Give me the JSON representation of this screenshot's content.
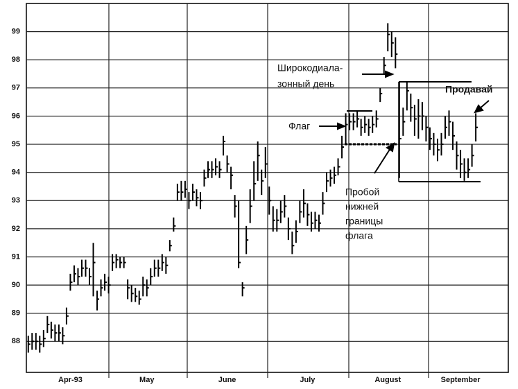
{
  "chart_data": {
    "type": "ohlc",
    "annotations": [
      "Широкодиала-",
      "зонный день",
      "Флаг",
      "Продавай",
      "Пробой",
      "нижней",
      "границы",
      "флага"
    ],
    "ylim": [
      86.9,
      100
    ],
    "yticks": [
      88,
      89,
      90,
      91,
      92,
      93,
      94,
      95,
      96,
      97,
      98,
      99
    ],
    "grid": true,
    "color": "#000000",
    "categories": [
      null,
      null,
      null,
      null,
      null,
      null,
      null,
      null,
      null,
      null,
      null,
      "Apr-93",
      null,
      null,
      null,
      null,
      null,
      null,
      null,
      null,
      null,
      null,
      null,
      null,
      null,
      null,
      null,
      null,
      null,
      null,
      null,
      "May",
      null,
      null,
      null,
      null,
      null,
      null,
      null,
      null,
      null,
      null,
      null,
      null,
      null,
      null,
      null,
      null,
      null,
      null,
      null,
      null,
      "June",
      null,
      null,
      null,
      null,
      null,
      null,
      null,
      null,
      null,
      null,
      null,
      null,
      null,
      null,
      null,
      null,
      null,
      null,
      null,
      null,
      "July",
      null,
      null,
      null,
      null,
      null,
      null,
      null,
      null,
      null,
      null,
      null,
      null,
      null,
      null,
      null,
      null,
      null,
      null,
      null,
      null,
      "August",
      null,
      null,
      null,
      null,
      null,
      null,
      null,
      null,
      null,
      null,
      null,
      null,
      null,
      null,
      null,
      null,
      null,
      null,
      "September",
      null,
      null,
      null,
      null
    ],
    "high": [
      88.2,
      88.3,
      88.3,
      88.2,
      88.4,
      88.9,
      88.7,
      88.6,
      88.6,
      88.5,
      89.2,
      90.4,
      90.7,
      90.6,
      90.9,
      90.9,
      90.6,
      91.5,
      89.8,
      90.2,
      90.4,
      90.3,
      91.1,
      91.1,
      91.0,
      91.0,
      90.2,
      90.0,
      89.9,
      89.8,
      90.3,
      90.2,
      90.6,
      90.9,
      90.9,
      91.1,
      91.0,
      91.6,
      92.4,
      93.6,
      93.7,
      93.7,
      93.3,
      93.6,
      93.4,
      93.3,
      94.1,
      94.4,
      94.4,
      94.5,
      94.4,
      95.3,
      94.6,
      94.2,
      93.2,
      93.0,
      90.1,
      92.1,
      93.4,
      94.4,
      95.1,
      94.1,
      94.9,
      93.5,
      92.8,
      92.7,
      93.0,
      93.2,
      92.4,
      91.9,
      92.3,
      93.0,
      93.4,
      92.9,
      92.6,
      92.6,
      92.5,
      93.3,
      94.0,
      94.1,
      94.2,
      94.5,
      95.3,
      96.1,
      96.1,
      96.1,
      96.2,
      95.9,
      96.0,
      95.9,
      96.0,
      96.2,
      97.0,
      98.1,
      99.3,
      99.0,
      98.8,
      97.2,
      96.3,
      97.2,
      96.8,
      96.4,
      96.6,
      96.5,
      96.0,
      95.6,
      95.4,
      95.2,
      95.4,
      96.0,
      96.2,
      95.8,
      95.1,
      94.8,
      94.5,
      94.5,
      95.0,
      96.1
    ],
    "low": [
      87.6,
      87.7,
      87.7,
      87.6,
      87.8,
      88.3,
      88.1,
      88.0,
      88.0,
      87.9,
      88.6,
      89.8,
      90.1,
      90.0,
      90.3,
      90.3,
      90.0,
      89.6,
      89.1,
      89.6,
      89.8,
      89.7,
      90.5,
      90.6,
      90.6,
      90.6,
      89.5,
      89.4,
      89.4,
      89.3,
      89.6,
      89.6,
      90.0,
      90.3,
      90.3,
      90.5,
      90.4,
      91.2,
      91.9,
      93.0,
      93.0,
      93.1,
      92.7,
      93.0,
      92.8,
      92.7,
      93.5,
      93.8,
      93.8,
      93.9,
      93.8,
      94.6,
      94.0,
      93.4,
      92.4,
      90.6,
      89.6,
      91.1,
      92.2,
      93.0,
      93.7,
      93.2,
      93.8,
      92.5,
      91.9,
      91.9,
      92.2,
      92.4,
      91.6,
      91.1,
      91.5,
      92.2,
      92.4,
      92.1,
      91.9,
      92.0,
      91.9,
      92.5,
      93.3,
      93.5,
      93.6,
      93.9,
      94.5,
      95.0,
      95.5,
      95.5,
      95.6,
      95.3,
      95.4,
      95.3,
      95.4,
      95.6,
      96.5,
      97.5,
      98.3,
      98.1,
      97.7,
      93.8,
      95.3,
      96.2,
      95.8,
      95.3,
      95.2,
      95.5,
      95.1,
      94.8,
      94.6,
      94.4,
      94.6,
      95.2,
      95.3,
      94.8,
      94.1,
      93.8,
      93.7,
      93.8,
      94.2,
      95.1
    ],
    "close": [
      87.9,
      88.0,
      88.0,
      87.9,
      88.1,
      88.6,
      88.4,
      88.3,
      88.3,
      88.2,
      88.9,
      90.1,
      90.4,
      90.3,
      90.6,
      90.6,
      90.3,
      90.8,
      89.5,
      89.9,
      90.1,
      90.0,
      90.8,
      90.9,
      90.8,
      90.8,
      89.9,
      89.7,
      89.6,
      89.5,
      90.0,
      89.9,
      90.3,
      90.6,
      90.6,
      90.8,
      90.7,
      91.4,
      92.1,
      93.3,
      93.3,
      93.4,
      93.0,
      93.3,
      93.1,
      93.0,
      93.8,
      94.1,
      94.1,
      94.2,
      94.1,
      95.1,
      94.3,
      93.9,
      92.8,
      90.8,
      89.9,
      91.6,
      92.8,
      93.6,
      94.6,
      93.7,
      94.3,
      93.0,
      92.3,
      92.3,
      92.6,
      92.8,
      92.0,
      91.4,
      91.9,
      92.6,
      92.9,
      92.5,
      92.2,
      92.3,
      92.2,
      92.9,
      93.7,
      93.8,
      93.9,
      94.2,
      94.9,
      95.7,
      95.8,
      95.8,
      95.9,
      95.6,
      95.7,
      95.6,
      95.7,
      95.9,
      96.8,
      97.8,
      98.9,
      98.6,
      98.2,
      95.2,
      95.8,
      96.9,
      96.3,
      95.9,
      96.0,
      96.0,
      95.6,
      95.2,
      95.0,
      94.8,
      95.0,
      95.6,
      95.8,
      95.3,
      94.6,
      94.3,
      94.0,
      94.1,
      94.6,
      95.6
    ]
  }
}
